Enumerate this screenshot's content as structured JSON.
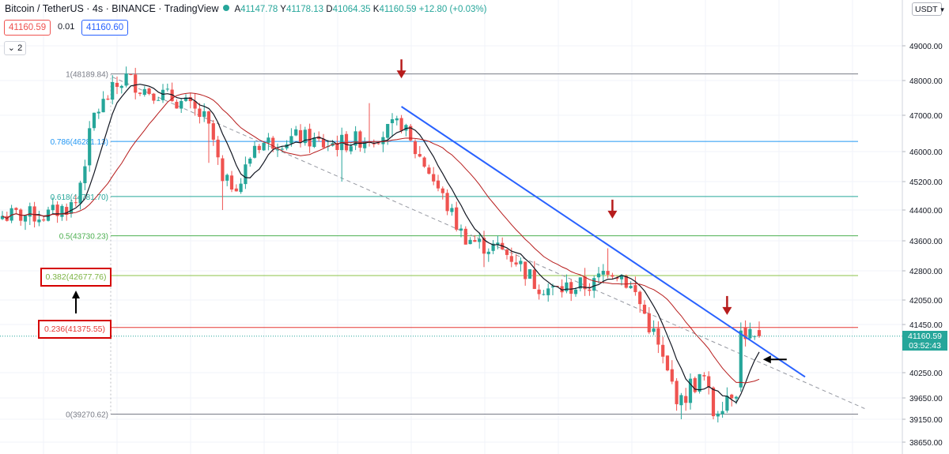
{
  "header": {
    "title": "Bitcoin / TetherUS · 4s · BINANCE · TradingView",
    "ohlc": {
      "o_label": "A",
      "o": "41147.78",
      "h_label": "Y",
      "h": "41178.13",
      "l_label": "D",
      "l": "41064.35",
      "c_label": "K",
      "c": "41160.59",
      "change": "+12.80 (+0.03%)"
    },
    "bid": "41160.59",
    "spread": "0.01",
    "ask": "41160.60",
    "indicator_count": "2",
    "currency": "USDT"
  },
  "last_price": {
    "value": "41160.59",
    "countdown": "03:52:43"
  },
  "annotations": {
    "box_382": "0.382(42677.76)",
    "box_236": "0.236(41375.55)"
  },
  "colors": {
    "up": "#26a69a",
    "down": "#ef5350",
    "trendline": "#2962ff",
    "arrow": "#b71c1c",
    "ma_fast": "#131722",
    "ma_slow": "#b71c1c"
  },
  "chart_data": {
    "type": "candlestick",
    "y_ticks": [
      {
        "value": 49000,
        "label": "49000.00"
      },
      {
        "value": 48000,
        "label": "48000.00"
      },
      {
        "value": 47000,
        "label": "47000.00"
      },
      {
        "value": 46000,
        "label": "46000.00"
      },
      {
        "value": 45200,
        "label": "45200.00"
      },
      {
        "value": 44400,
        "label": "44400.00"
      },
      {
        "value": 43600,
        "label": "43600.00"
      },
      {
        "value": 42800,
        "label": "42800.00"
      },
      {
        "value": 42050,
        "label": "42050.00"
      },
      {
        "value": 41450,
        "label": "41450.00"
      },
      {
        "value": 40250,
        "label": "40250.00"
      },
      {
        "value": 39650,
        "label": "39650.00"
      },
      {
        "value": 39150,
        "label": "39150.00"
      },
      {
        "value": 38650,
        "label": "38650.00"
      }
    ],
    "fib_levels": [
      {
        "label": "1(48189.84)",
        "price": 48189.84,
        "color": "#787b86"
      },
      {
        "label": "0.786(46281.13)",
        "price": 46281.13,
        "color": "#2196f3"
      },
      {
        "label": "0.618(44781.70)",
        "price": 44781.7,
        "color": "#26a69a"
      },
      {
        "label": "0.5(43730.23)",
        "price": 43730.23,
        "color": "#4caf50"
      },
      {
        "label": "0.382(42677.76)",
        "price": 42677.76,
        "color": "#8bc34a"
      },
      {
        "label": "0.236(41375.55)",
        "price": 41375.55,
        "color": "#e53935"
      },
      {
        "label": "0(39270.62)",
        "price": 39270.62,
        "color": "#787b86"
      }
    ],
    "close_anchors": [
      [
        0,
        44250
      ],
      [
        10,
        44270
      ],
      [
        16,
        44600
      ],
      [
        20,
        47000
      ],
      [
        24,
        47700
      ],
      [
        27,
        48100
      ],
      [
        30,
        47800
      ],
      [
        35,
        47600
      ],
      [
        40,
        47300
      ],
      [
        44,
        46900
      ],
      [
        46,
        46300
      ],
      [
        48,
        45100
      ],
      [
        52,
        45200
      ],
      [
        55,
        46200
      ],
      [
        60,
        46300
      ],
      [
        65,
        46400
      ],
      [
        70,
        46200
      ],
      [
        75,
        46250
      ],
      [
        80,
        46400
      ],
      [
        83,
        46500
      ],
      [
        86,
        46700
      ],
      [
        87,
        46800
      ],
      [
        89,
        46200
      ],
      [
        93,
        45500
      ],
      [
        97,
        44500
      ],
      [
        100,
        43800
      ],
      [
        104,
        43500
      ],
      [
        108,
        43400
      ],
      [
        112,
        43100
      ],
      [
        116,
        42500
      ],
      [
        120,
        42300
      ],
      [
        125,
        42400
      ],
      [
        129,
        42450
      ],
      [
        132,
        42900
      ],
      [
        135,
        42700
      ],
      [
        138,
        42200
      ],
      [
        140,
        41700
      ],
      [
        142,
        41200
      ],
      [
        145,
        40200
      ],
      [
        148,
        39500
      ],
      [
        150,
        39950
      ],
      [
        153,
        40100
      ],
      [
        155,
        39300
      ],
      [
        158,
        39750
      ],
      [
        160,
        39900
      ],
      [
        161,
        41300
      ],
      [
        163,
        41200
      ],
      [
        165,
        41160
      ]
    ],
    "max_low_dips": [
      {
        "i": 45,
        "low": 45700
      },
      {
        "i": 48,
        "low": 44400
      },
      {
        "i": 74,
        "low": 45200
      },
      {
        "i": 85,
        "low": 46400
      },
      {
        "i": 105,
        "low": 42900
      },
      {
        "i": 148,
        "low": 39150
      },
      {
        "i": 155,
        "low": 39150
      }
    ],
    "high_spikes": [
      {
        "i": 24,
        "high": 48150
      },
      {
        "i": 27,
        "high": 48190
      },
      {
        "i": 80,
        "high": 47350
      },
      {
        "i": 87,
        "high": 47000
      },
      {
        "i": 132,
        "high": 43400
      },
      {
        "i": 162,
        "high": 41550
      }
    ],
    "trendline": {
      "from": {
        "i": 87,
        "price": 47250
      },
      "to": {
        "i": 175,
        "price": 40150
      }
    },
    "dashed_line": {
      "from": {
        "i": 24,
        "price": 48100
      },
      "to": {
        "i": 188,
        "price": 39400
      }
    },
    "down_arrows": [
      {
        "i": 87,
        "price": 48200
      },
      {
        "i": 133,
        "price": 44300
      },
      {
        "i": 158,
        "price": 41800
      }
    ],
    "left_arrow": {
      "i": 161,
      "price": 40580
    },
    "ma_fast_period": 7,
    "ma_slow_period": 20
  }
}
